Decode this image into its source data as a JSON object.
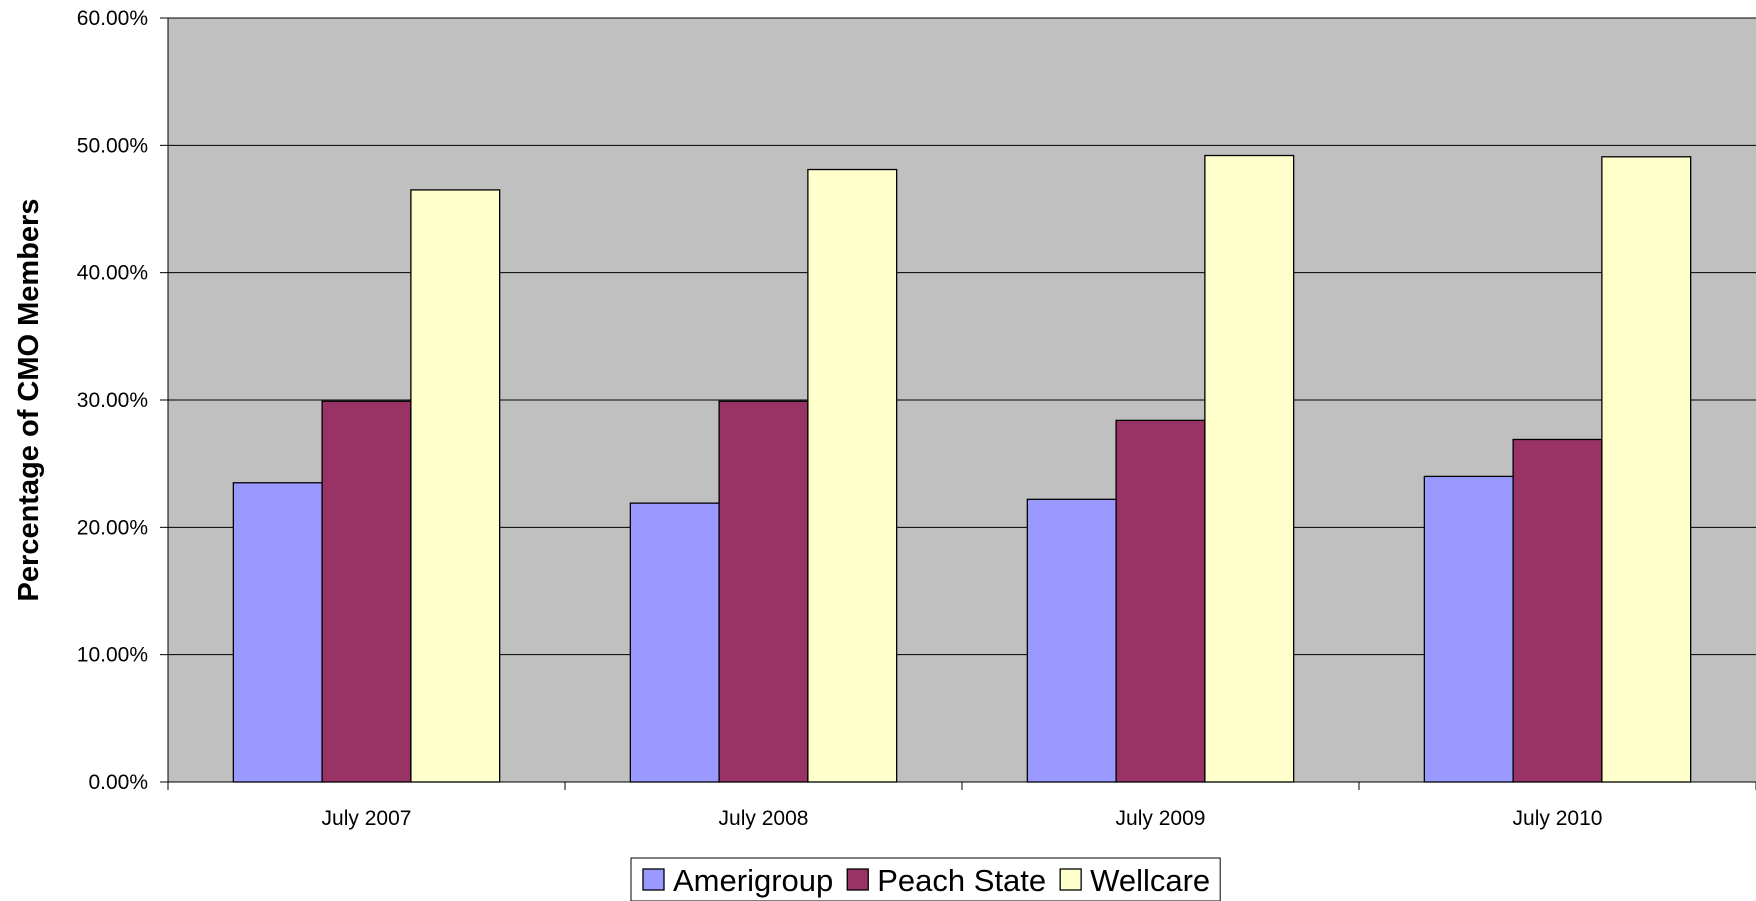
{
  "chart_data": {
    "type": "bar",
    "title": "",
    "xlabel": "",
    "ylabel": "Percentage of CMO Members",
    "ylim": [
      0,
      0.6
    ],
    "yticks": [
      0,
      0.1,
      0.2,
      0.3,
      0.4,
      0.5,
      0.6
    ],
    "ytick_labels": [
      "0.00%",
      "10.00%",
      "20.00%",
      "30.00%",
      "40.00%",
      "50.00%",
      "60.00%"
    ],
    "categories": [
      "July 2007",
      "July 2008",
      "July 2009",
      "July 2010"
    ],
    "series": [
      {
        "name": "Amerigroup",
        "color": "#9999ff",
        "values": [
          0.235,
          0.219,
          0.222,
          0.24
        ]
      },
      {
        "name": "Peach State",
        "color": "#993366",
        "values": [
          0.299,
          0.299,
          0.284,
          0.269
        ]
      },
      {
        "name": "Wellcare",
        "color": "#ffffcc",
        "values": [
          0.465,
          0.481,
          0.492,
          0.491
        ]
      }
    ],
    "grid": true,
    "plot_background": "#c0c0c0",
    "legend_position": "bottom"
  }
}
